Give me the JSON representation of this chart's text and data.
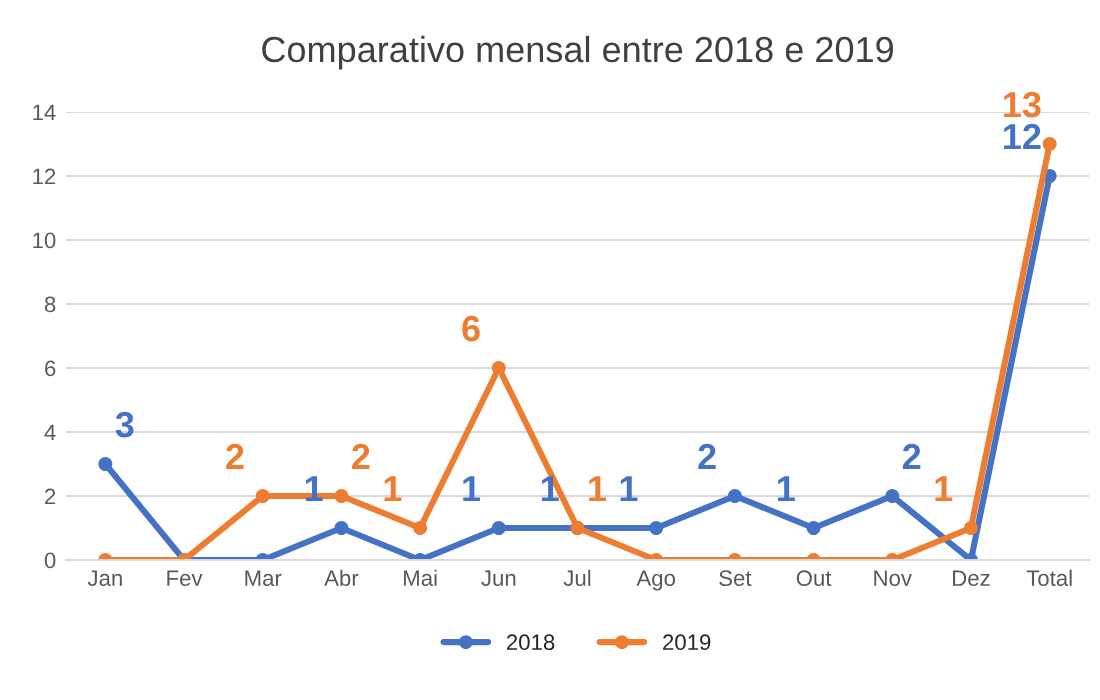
{
  "chart_data": {
    "type": "line",
    "title": "Comparativo mensal entre 2018 e 2019",
    "categories": [
      "Jan",
      "Fev",
      "Mar",
      "Abr",
      "Mai",
      "Jun",
      "Jul",
      "Ago",
      "Set",
      "Out",
      "Nov",
      "Dez",
      "Total"
    ],
    "series": [
      {
        "name": "2018",
        "color": "#4472c4",
        "values": [
          3,
          0,
          0,
          1,
          0,
          1,
          1,
          1,
          2,
          1,
          2,
          0,
          12
        ],
        "value_labels": [
          "3",
          null,
          null,
          "1",
          null,
          "1",
          "1",
          "1",
          "2",
          "1",
          "2",
          null,
          "12"
        ]
      },
      {
        "name": "2019",
        "color": "#ed7d31",
        "values": [
          0,
          0,
          2,
          2,
          1,
          6,
          1,
          0,
          0,
          0,
          0,
          1,
          13
        ],
        "value_labels": [
          null,
          null,
          "2",
          "2",
          "1",
          "6",
          "1",
          null,
          null,
          null,
          null,
          "1",
          "13"
        ]
      }
    ],
    "ylim": [
      0,
      14
    ],
    "yticks": [
      0,
      2,
      4,
      6,
      8,
      10,
      12,
      14
    ],
    "grid": "y",
    "legend": "bottom",
    "marker": "circle",
    "line_style": "solid"
  }
}
